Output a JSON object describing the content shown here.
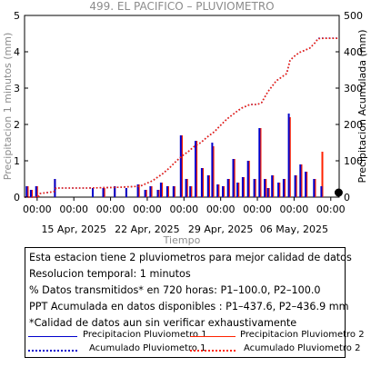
{
  "chart_data": {
    "type": "bar+line",
    "title": "499. EL PACIFICO – PLUVIOMETRO",
    "xlabel": "Tiempo",
    "ylabel_left": "Precipitacion 1 minutos (mm)",
    "ylabel_right": "Precipitacion Acumulada (mm)",
    "ylim_left": [
      0,
      5
    ],
    "ylim_right": [
      0,
      500
    ],
    "yticks_left": [
      "0",
      "1",
      "2",
      "3",
      "4",
      "5"
    ],
    "yticks_right": [
      "0",
      "100",
      "200",
      "300",
      "400",
      "500"
    ],
    "xrange_days": [
      0,
      30
    ],
    "xticks": [
      {
        "d": 1.2,
        "time": "00:00",
        "date": ""
      },
      {
        "d": 4.7,
        "time": "00:00",
        "date": "15 Apr, 2025"
      },
      {
        "d": 8.2,
        "time": "00:00",
        "date": ""
      },
      {
        "d": 11.7,
        "time": "00:00",
        "date": "22 Apr, 2025"
      },
      {
        "d": 15.2,
        "time": "00:00",
        "date": ""
      },
      {
        "d": 18.7,
        "time": "00:00",
        "date": "29 Apr, 2025"
      },
      {
        "d": 22.2,
        "time": "00:00",
        "date": ""
      },
      {
        "d": 25.7,
        "time": "00:00",
        "date": "06 May, 2025"
      },
      {
        "d": 29.2,
        "time": "00:00",
        "date": ""
      }
    ],
    "series": [
      {
        "name": "Precipitacion Pluviometro 1",
        "kind": "bar",
        "color": "#0000cc",
        "x": [
          0.2,
          0.6,
          1.1,
          2.9,
          6.5,
          7.5,
          8.6,
          9.7,
          10.8,
          11.5,
          12.0,
          12.7,
          13.0,
          13.6,
          14.2,
          14.9,
          15.4,
          15.8,
          16.3,
          16.9,
          17.5,
          17.9,
          18.4,
          18.9,
          19.4,
          19.9,
          20.3,
          20.8,
          21.3,
          21.9,
          22.4,
          22.9,
          23.2,
          23.6,
          24.2,
          24.7,
          25.2,
          25.8,
          26.3,
          26.8,
          27.6,
          28.3
        ],
        "values": [
          0.3,
          0.2,
          0.3,
          0.5,
          0.25,
          0.25,
          0.3,
          0.25,
          0.35,
          0.2,
          0.3,
          0.2,
          0.4,
          0.3,
          0.3,
          1.7,
          0.5,
          0.3,
          1.55,
          0.8,
          0.6,
          1.5,
          0.35,
          0.3,
          0.5,
          1.05,
          0.4,
          0.55,
          1.0,
          0.5,
          1.9,
          0.5,
          0.25,
          0.6,
          0.4,
          0.5,
          2.3,
          0.6,
          0.9,
          0.7,
          0.5,
          0.3
        ]
      },
      {
        "name": "Precipitacion Pluviometro 2",
        "kind": "bar",
        "color": "#ff2200",
        "x": [
          0.3,
          0.7,
          1.2,
          2.9,
          6.5,
          7.6,
          8.6,
          9.7,
          10.9,
          11.6,
          12.1,
          12.8,
          13.1,
          13.7,
          14.3,
          15.0,
          15.5,
          15.9,
          16.4,
          17.0,
          17.6,
          18.0,
          18.5,
          19.0,
          19.5,
          20.0,
          20.4,
          20.9,
          21.4,
          22.0,
          22.5,
          23.0,
          23.3,
          23.7,
          24.3,
          24.8,
          25.3,
          25.9,
          26.4,
          26.9,
          27.7,
          28.4
        ],
        "values": [
          0.3,
          0.2,
          0.3,
          0.5,
          0.25,
          0.25,
          0.3,
          0.25,
          0.35,
          0.2,
          0.3,
          0.2,
          0.4,
          0.3,
          0.3,
          1.7,
          0.5,
          0.3,
          1.55,
          0.8,
          0.6,
          1.4,
          0.35,
          0.3,
          0.5,
          1.05,
          0.4,
          0.55,
          1.0,
          0.5,
          1.9,
          0.5,
          0.25,
          0.6,
          0.4,
          0.5,
          2.2,
          0.6,
          0.9,
          0.7,
          0.5,
          1.25
        ]
      },
      {
        "name": "Acumulado Pluviometro 1",
        "kind": "line",
        "color": "#0000cc",
        "x": [
          0,
          1.3,
          1.5,
          2.8,
          3.0,
          6.0,
          9.0,
          11.0,
          12.2,
          13.2,
          13.8,
          14.5,
          15.1,
          15.6,
          16.2,
          16.8,
          17.4,
          18.1,
          18.6,
          19.3,
          20.2,
          20.7,
          21.5,
          22.2,
          22.6,
          22.9,
          23.2,
          24.0,
          24.5,
          25.0,
          25.3,
          25.6,
          26.2,
          26.8,
          27.2,
          27.7,
          28.0,
          28.5,
          30.0
        ],
        "values": [
          0,
          0,
          10,
          15,
          25,
          25,
          27,
          30,
          45,
          65,
          80,
          100,
          115,
          125,
          140,
          150,
          165,
          180,
          195,
          215,
          235,
          245,
          255,
          255,
          260,
          275,
          290,
          320,
          330,
          340,
          375,
          385,
          398,
          405,
          410,
          425,
          437,
          437.6,
          437.6
        ]
      },
      {
        "name": "Acumulado Pluviometro 2",
        "kind": "line",
        "color": "#ff2200",
        "x": [
          0,
          1.3,
          1.5,
          2.8,
          3.0,
          6.0,
          9.0,
          11.0,
          12.2,
          13.2,
          13.8,
          14.5,
          15.1,
          15.6,
          16.2,
          16.8,
          17.4,
          18.1,
          18.6,
          19.3,
          20.2,
          20.7,
          21.5,
          22.2,
          22.6,
          22.9,
          23.2,
          24.0,
          24.5,
          25.0,
          25.3,
          25.6,
          26.2,
          26.8,
          27.2,
          27.7,
          28.0,
          28.5,
          30.0
        ],
        "values": [
          0,
          0,
          10,
          15,
          25,
          25,
          27,
          30,
          45,
          65,
          80,
          100,
          115,
          125,
          140,
          150,
          165,
          180,
          195,
          215,
          235,
          245,
          255,
          255,
          260,
          275,
          290,
          320,
          330,
          340,
          375,
          385,
          398,
          405,
          410,
          425,
          436,
          436.9,
          436.9
        ]
      }
    ],
    "end_marker": {
      "d": 29.95,
      "value": 0
    }
  },
  "info": {
    "line1": "Esta estacion tiene 2 pluviometros para mejor calidad de datos",
    "line2": "Resolucion temporal: 1 minutos",
    "line3": "% Datos transmitidos* en 720 horas: P1–100.0, P2–100.0",
    "line4": "PPT Acumulada en datos disponibles : P1–437.6, P2–436.9 mm",
    "line5": "*Calidad de datos aun sin verificar exhaustivamente"
  },
  "legend": {
    "p1_bar": "Precipitacion Pluviometro 1",
    "p2_bar": "Precipitacion Pluviometro 2",
    "p1_acc": "Acumulado Pluviometro 1",
    "p2_acc": "Acumulado Pluviometro 2"
  }
}
